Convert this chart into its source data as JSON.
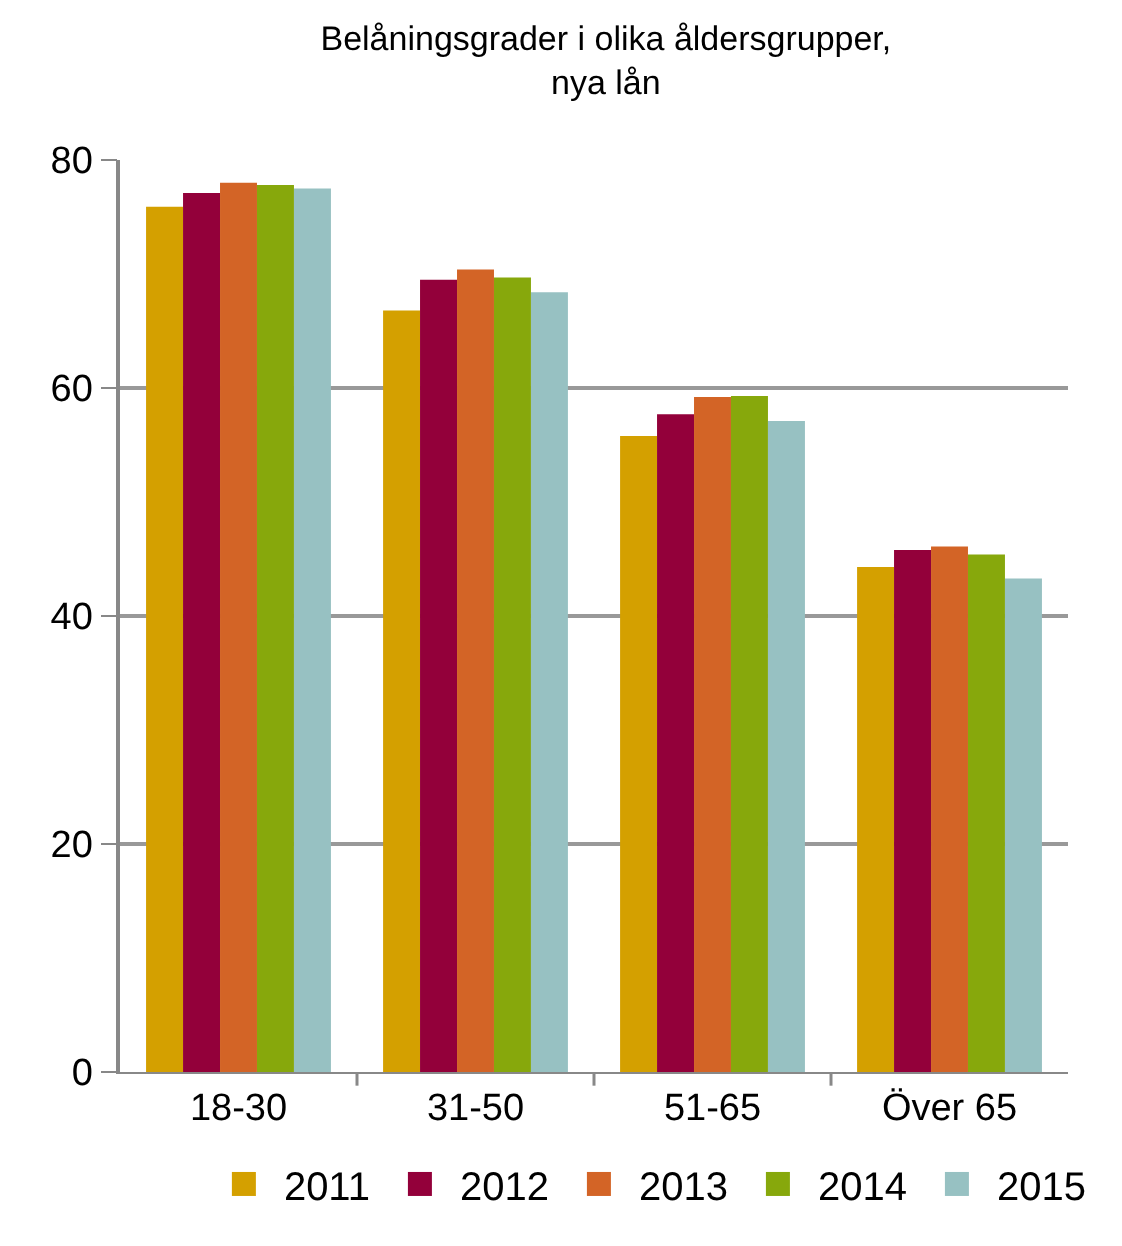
{
  "chart_data": {
    "type": "bar",
    "title": "Belåningsgrader i olika åldersgrupper,\nnya lån",
    "categories": [
      "18-30",
      "31-50",
      "51-65",
      "Över 65"
    ],
    "series": [
      {
        "name": "2011",
        "color": "#d4a000",
        "values": [
          75.9,
          66.8,
          55.8,
          44.3
        ]
      },
      {
        "name": "2012",
        "color": "#93003a",
        "values": [
          77.1,
          69.5,
          57.7,
          45.8
        ]
      },
      {
        "name": "2013",
        "color": "#d36426",
        "values": [
          78.0,
          70.4,
          59.2,
          46.1
        ]
      },
      {
        "name": "2014",
        "color": "#87a80c",
        "values": [
          77.8,
          69.7,
          59.3,
          45.4
        ]
      },
      {
        "name": "2015",
        "color": "#97c1c2",
        "values": [
          77.5,
          68.4,
          57.1,
          43.3
        ]
      }
    ],
    "ylim": [
      0,
      80
    ],
    "yticks": [
      0,
      20,
      40,
      60,
      80
    ],
    "grid": "y",
    "legend": "bottom"
  }
}
